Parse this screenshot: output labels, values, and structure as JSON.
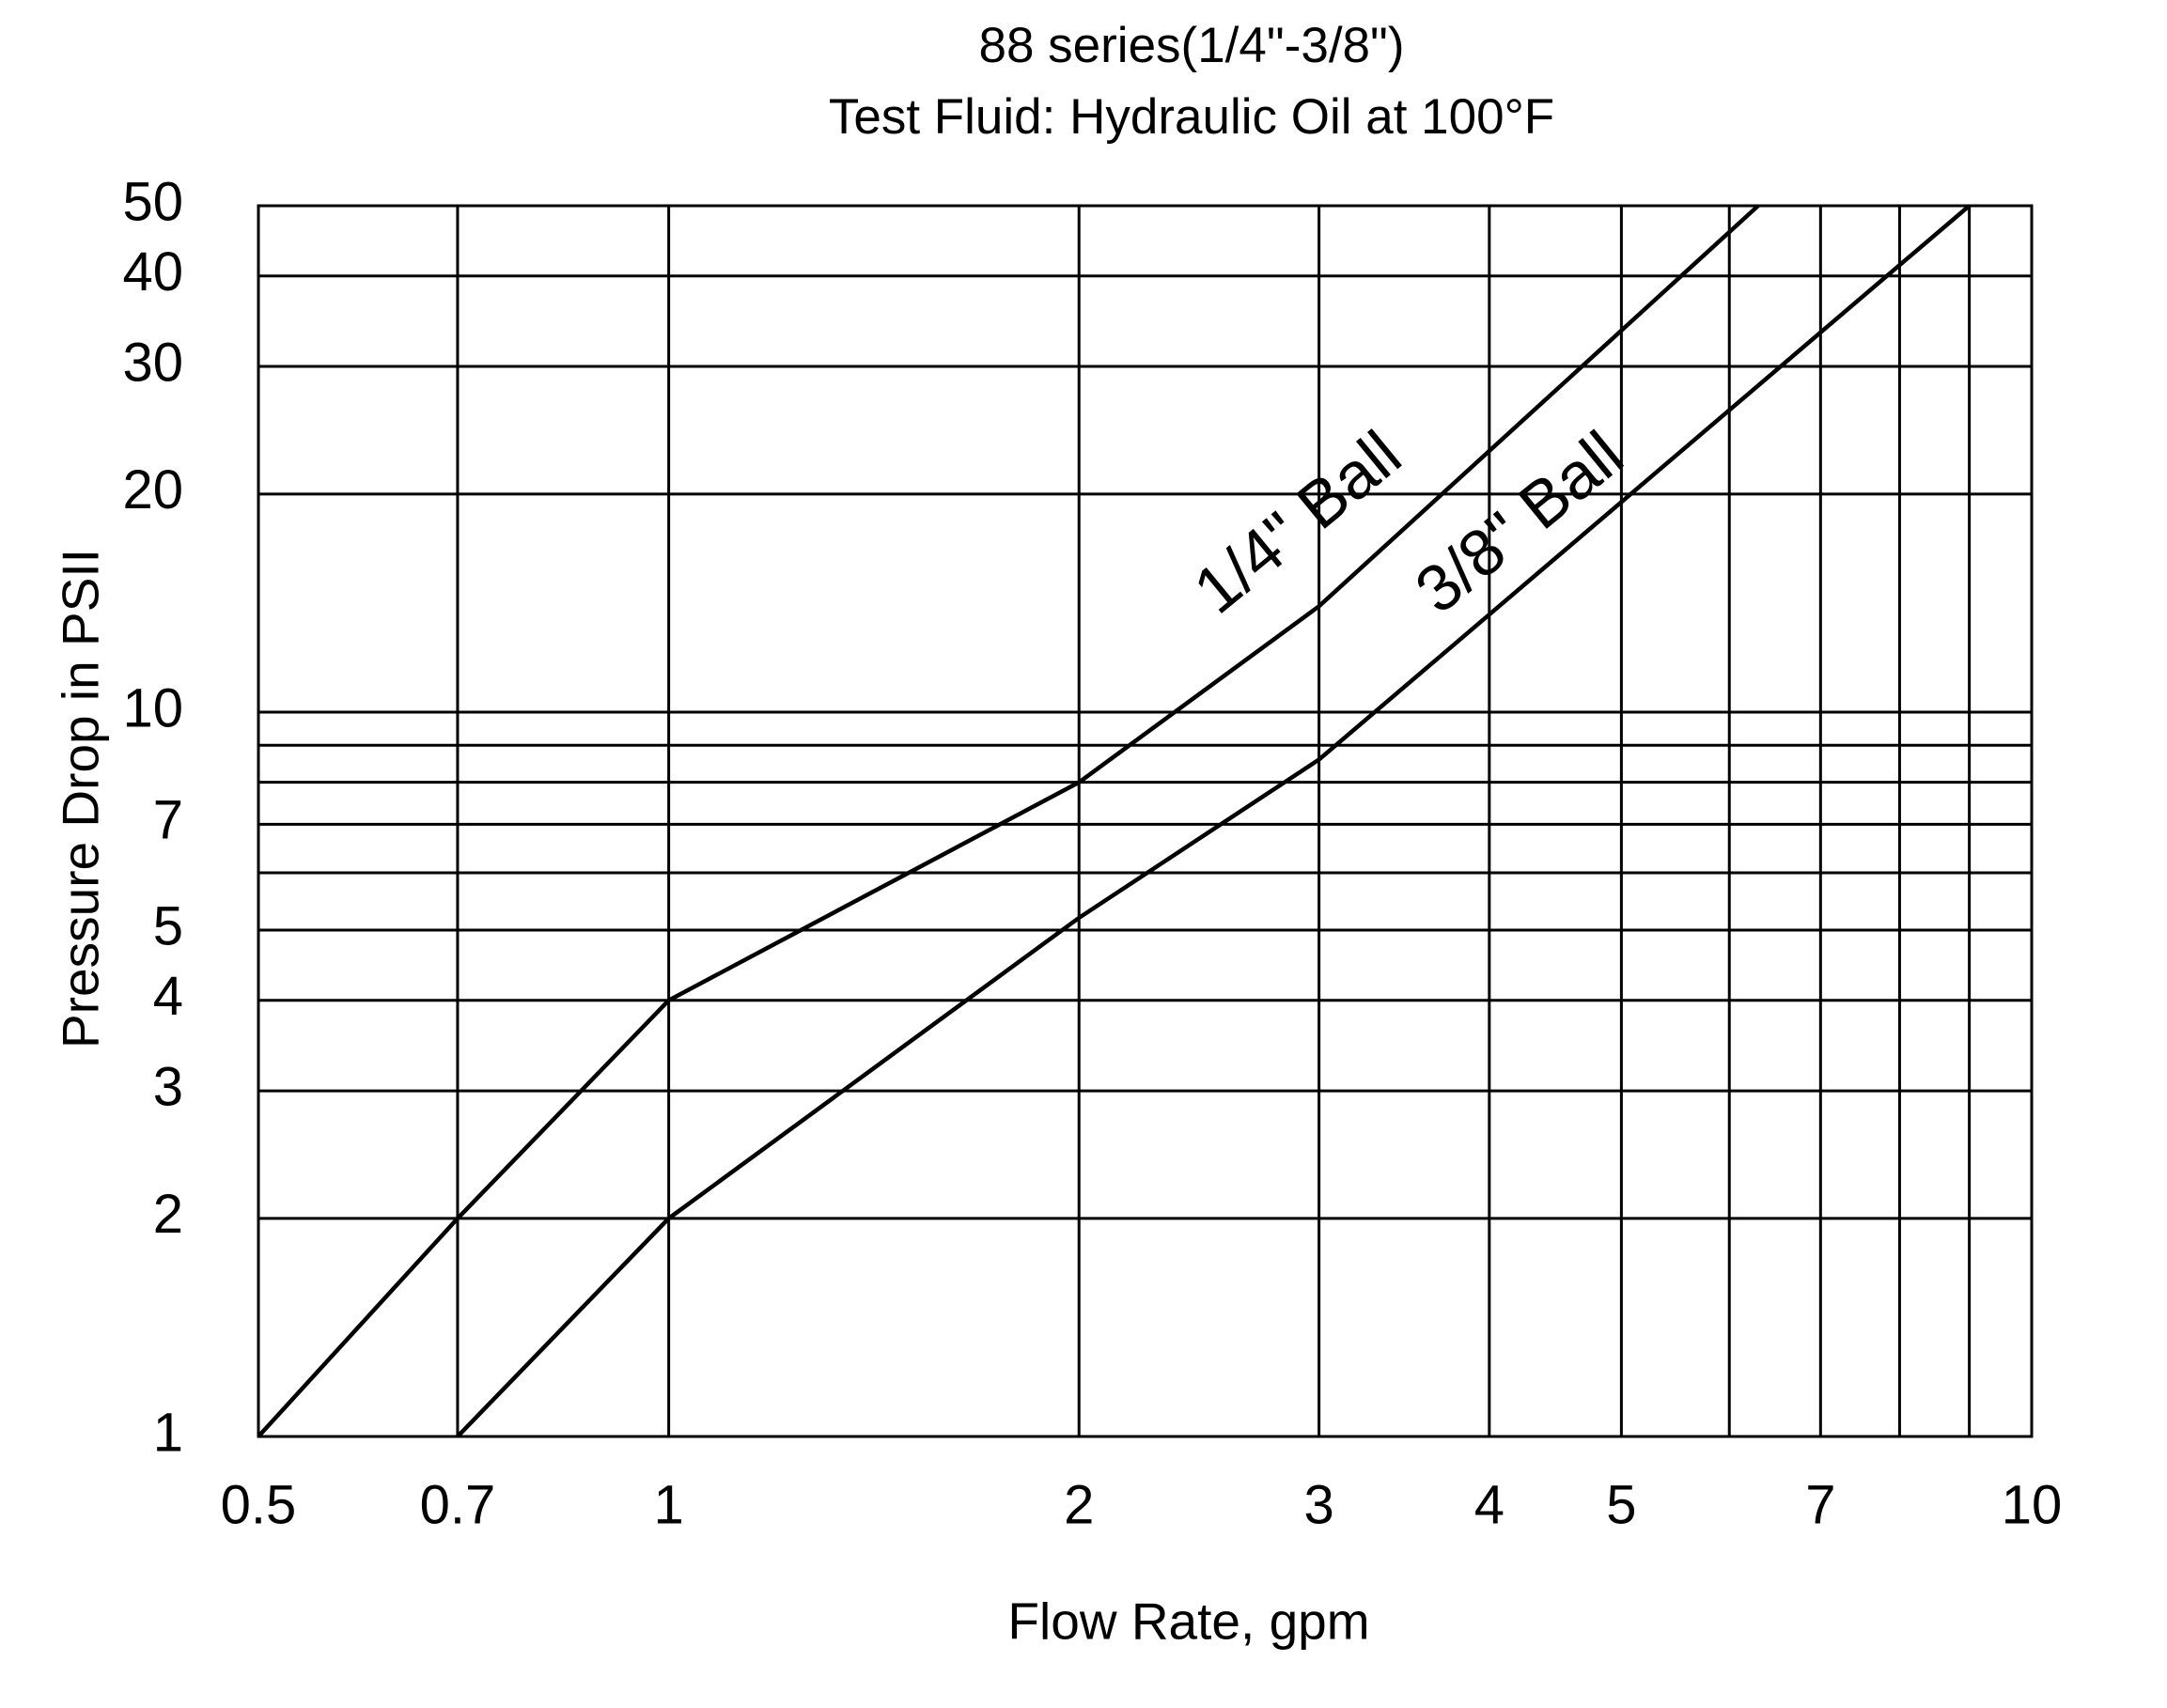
{
  "chart_data": {
    "type": "line",
    "title": "88 series(1/4\"-3/8\")",
    "subtitle": "Test Fluid: Hydraulic Oil at 100°F",
    "x_label": "Flow Rate, gpm",
    "y_label": "Pressure Drop in PSII",
    "x_scale": "log",
    "y_scale": "log",
    "grid": true,
    "xlim": [
      0.5,
      10
    ],
    "ylim": [
      1,
      50
    ],
    "xticks": [
      0.5,
      0.7,
      1,
      2,
      3,
      4,
      5,
      7,
      10
    ],
    "yticks": [
      1,
      2,
      3,
      4,
      5,
      7,
      10,
      20,
      30,
      40,
      50
    ],
    "x_minor_grid": [
      6,
      8,
      9
    ],
    "y_minor_grid": [
      6,
      8,
      9
    ],
    "series": [
      {
        "name": "1/4\" Ball",
        "color": "#000000",
        "x": [
          0.5,
          0.7,
          1,
          2,
          3,
          6.3
        ],
        "values": [
          1,
          2,
          4,
          8,
          14,
          50
        ]
      },
      {
        "name": "3/8\" Ball",
        "color": "#000000",
        "x": [
          0.7,
          1,
          2,
          3,
          9
        ],
        "values": [
          1,
          2,
          5.2,
          8.6,
          50
        ]
      }
    ]
  }
}
